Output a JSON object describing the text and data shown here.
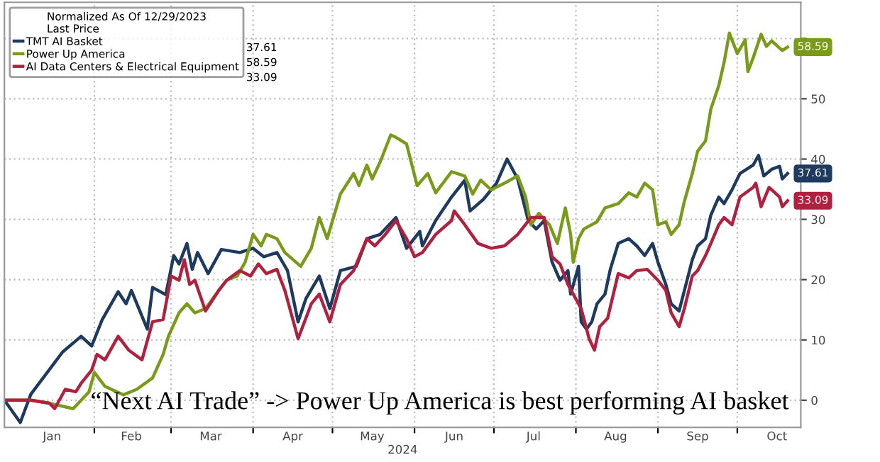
{
  "chart_data": {
    "type": "line",
    "xlabel": "2024",
    "legend_title": "Normalized As Of 12/29/2023\nLast Price",
    "legend": "top left",
    "grid": true,
    "line_style": "solid",
    "marker": "none",
    "xlim": [
      "2023-12-29",
      "2024-10-25"
    ],
    "xticks": [
      {
        "value": "2024-02-01",
        "label": null
      },
      {
        "value": "2024-03-01",
        "label": null
      },
      {
        "value": "2024-04-01",
        "label": null
      },
      {
        "value": "2024-05-01",
        "label": null
      },
      {
        "value": "2024-06-01",
        "label": null
      },
      {
        "value": "2024-07-01",
        "label": null
      },
      {
        "value": "2024-08-01",
        "label": null
      },
      {
        "value": "2024-09-01",
        "label": null
      },
      {
        "value": "2024-10-01",
        "label": null
      },
      {
        "value": "2024-01-16",
        "label": "Jan"
      },
      {
        "value": "2024-02-15",
        "label": "Feb"
      },
      {
        "value": "2024-03-16",
        "label": "Mar"
      },
      {
        "value": "2024-04-16",
        "label": "Apr"
      },
      {
        "value": "2024-05-16",
        "label": "May"
      },
      {
        "value": "2024-06-16",
        "label": "Jun"
      },
      {
        "value": "2024-07-16",
        "label": "Jul"
      },
      {
        "value": "2024-08-16",
        "label": "Aug"
      },
      {
        "value": "2024-09-16",
        "label": "Sep"
      },
      {
        "value": "2024-10-16",
        "label": "Oct"
      }
    ],
    "ylim": [
      -4.5,
      66
    ],
    "yticks": [
      0,
      10,
      20,
      30,
      40,
      50,
      {
        "value": 60,
        "label": null
      }
    ],
    "annotations": [
      "“Next AI Trade” -> Power Up America is best performing AI basket"
    ],
    "series": [
      {
        "name": "TMT AI Basket",
        "color": "#1f3a5f",
        "x": [
          "2023-12-29",
          "2024-01-04",
          "2024-01-08",
          "2024-01-20",
          "2024-01-27",
          "2024-01-31",
          "2024-02-04",
          "2024-02-10",
          "2024-02-13",
          "2024-02-15",
          "2024-02-21",
          "2024-02-23",
          "2024-02-28",
          "2024-03-02",
          "2024-03-04",
          "2024-03-07",
          "2024-03-09",
          "2024-03-11",
          "2024-03-15",
          "2024-03-20",
          "2024-03-27",
          "2024-04-01",
          "2024-04-05",
          "2024-04-10",
          "2024-04-14",
          "2024-04-18",
          "2024-04-21",
          "2024-04-26",
          "2024-04-30",
          "2024-05-04",
          "2024-05-10",
          "2024-05-14",
          "2024-05-19",
          "2024-05-25",
          "2024-05-29",
          "2024-06-03",
          "2024-06-04",
          "2024-06-09",
          "2024-06-15",
          "2024-06-20",
          "2024-06-22",
          "2024-06-27",
          "2024-07-02",
          "2024-07-06",
          "2024-07-10",
          "2024-07-14",
          "2024-07-17",
          "2024-07-20",
          "2024-07-23",
          "2024-07-26",
          "2024-07-29",
          "2024-07-30",
          "2024-08-02",
          "2024-08-03",
          "2024-08-05",
          "2024-08-07",
          "2024-08-09",
          "2024-08-12",
          "2024-08-14",
          "2024-08-17",
          "2024-08-21",
          "2024-08-24",
          "2024-08-27",
          "2024-08-30",
          "2024-09-01",
          "2024-09-04",
          "2024-09-06",
          "2024-09-09",
          "2024-09-11",
          "2024-09-14",
          "2024-09-16",
          "2024-09-19",
          "2024-09-21",
          "2024-09-24",
          "2024-09-26",
          "2024-09-29",
          "2024-10-02",
          "2024-10-07",
          "2024-10-09",
          "2024-10-11",
          "2024-10-14",
          "2024-10-17",
          "2024-10-18",
          "2024-10-20"
        ],
        "values": [
          0,
          -3.7,
          1,
          8,
          10.6,
          9,
          13.4,
          18,
          16,
          18.2,
          11.8,
          18.7,
          17.5,
          24,
          22.6,
          26,
          21.7,
          24.5,
          21,
          25,
          24.5,
          25.2,
          23.8,
          24.5,
          21.5,
          13,
          16.9,
          20.6,
          15.2,
          21.5,
          22.2,
          26.8,
          27.5,
          30.3,
          25.2,
          28,
          25.6,
          29.8,
          33.7,
          36.5,
          31.4,
          33.3,
          36,
          40,
          36.7,
          29.8,
          28.4,
          29.8,
          22.9,
          19.9,
          21.5,
          17.6,
          22.2,
          13,
          11.8,
          13,
          16,
          17.6,
          21.7,
          26,
          26.8,
          25.6,
          24,
          26,
          22.9,
          19.2,
          16,
          14.8,
          18.2,
          23.3,
          25.6,
          26.8,
          30.7,
          33.7,
          32.6,
          34.9,
          37.6,
          39,
          40.6,
          37.2,
          38.3,
          38.8,
          36.7,
          37.61
        ],
        "value_labels": [
          null,
          null,
          null,
          null,
          null,
          null,
          null,
          null,
          null,
          null,
          null,
          null,
          null,
          null,
          null,
          null,
          null,
          null,
          null,
          null,
          null,
          null,
          null,
          null,
          null,
          null,
          null,
          null,
          null,
          null,
          null,
          null,
          null,
          null,
          null,
          null,
          null,
          null,
          null,
          null,
          null,
          null,
          null,
          null,
          null,
          null,
          null,
          null,
          null,
          null,
          null,
          null,
          null,
          null,
          null,
          null,
          null,
          null,
          null,
          null,
          null,
          null,
          null,
          null,
          null,
          null,
          null,
          null,
          null,
          null,
          null,
          null,
          null,
          null,
          null,
          null,
          null,
          null,
          null,
          null,
          null,
          null,
          null,
          "37.61"
        ]
      },
      {
        "name": "Power Up America",
        "color": "#7a9a1a",
        "x": [
          "2023-12-29",
          "2024-01-08",
          "2024-01-15",
          "2024-01-24",
          "2024-01-30",
          "2024-02-01",
          "2024-02-05",
          "2024-02-12",
          "2024-02-17",
          "2024-02-23",
          "2024-02-27",
          "2024-02-29",
          "2024-03-04",
          "2024-03-07",
          "2024-03-10",
          "2024-03-14",
          "2024-03-19",
          "2024-03-22",
          "2024-03-26",
          "2024-03-29",
          "2024-04-01",
          "2024-04-04",
          "2024-04-06",
          "2024-04-10",
          "2024-04-13",
          "2024-04-19",
          "2024-04-23",
          "2024-04-26",
          "2024-04-29",
          "2024-05-04",
          "2024-05-09",
          "2024-05-11",
          "2024-05-14",
          "2024-05-16",
          "2024-05-19",
          "2024-05-23",
          "2024-05-25",
          "2024-05-29",
          "2024-06-02",
          "2024-06-06",
          "2024-06-09",
          "2024-06-15",
          "2024-06-20",
          "2024-06-23",
          "2024-06-26",
          "2024-06-30",
          "2024-07-05",
          "2024-07-10",
          "2024-07-13",
          "2024-07-15",
          "2024-07-18",
          "2024-07-22",
          "2024-07-25",
          "2024-07-28",
          "2024-07-30",
          "2024-07-31",
          "2024-08-02",
          "2024-08-04",
          "2024-08-09",
          "2024-08-12",
          "2024-08-17",
          "2024-08-21",
          "2024-08-24",
          "2024-08-27",
          "2024-08-30",
          "2024-09-01",
          "2024-09-04",
          "2024-09-06",
          "2024-09-09",
          "2024-09-11",
          "2024-09-14",
          "2024-09-16",
          "2024-09-19",
          "2024-09-21",
          "2024-09-24",
          "2024-09-26",
          "2024-09-28",
          "2024-10-01",
          "2024-10-04",
          "2024-10-05",
          "2024-10-07",
          "2024-10-10",
          "2024-10-12",
          "2024-10-14",
          "2024-10-17",
          "2024-10-18",
          "2024-10-20"
        ],
        "values": [
          0,
          0,
          -0.5,
          -1.4,
          1.4,
          4.6,
          2.3,
          0.9,
          1.8,
          3.7,
          7.6,
          10.6,
          14.5,
          16,
          14.5,
          15.2,
          18.2,
          19.9,
          20.6,
          22.9,
          27.5,
          25.6,
          27.5,
          26.8,
          24.5,
          22.2,
          25.2,
          30.3,
          26.8,
          34.2,
          37.6,
          35.6,
          39,
          36.7,
          39.5,
          44,
          43.6,
          42.5,
          35.6,
          37.6,
          34.4,
          37.9,
          37.2,
          34.2,
          36.5,
          34.9,
          36,
          37.2,
          33.7,
          29.1,
          31,
          29.1,
          26,
          31.9,
          27.5,
          22.9,
          26.8,
          28.4,
          29.6,
          31.9,
          32.6,
          34.4,
          33.7,
          36,
          34.9,
          29.1,
          29.6,
          27.5,
          29.1,
          33,
          37.6,
          41.3,
          43,
          48.3,
          52.2,
          56,
          60.9,
          57.5,
          59.8,
          54.5,
          56.8,
          60.7,
          58.7,
          59.6,
          58.4,
          58,
          58.59
        ],
        "value_labels": [
          null,
          null,
          null,
          null,
          null,
          null,
          null,
          null,
          null,
          null,
          null,
          null,
          null,
          null,
          null,
          null,
          null,
          null,
          null,
          null,
          null,
          null,
          null,
          null,
          null,
          null,
          null,
          null,
          null,
          null,
          null,
          null,
          null,
          null,
          null,
          null,
          null,
          null,
          null,
          null,
          null,
          null,
          null,
          null,
          null,
          null,
          null,
          null,
          null,
          null,
          null,
          null,
          null,
          null,
          null,
          null,
          null,
          null,
          null,
          null,
          null,
          null,
          null,
          null,
          null,
          null,
          null,
          null,
          null,
          null,
          null,
          null,
          null,
          null,
          null,
          null,
          null,
          null,
          null,
          null,
          null,
          null,
          null,
          null,
          null,
          null,
          "58.59"
        ]
      },
      {
        "name": "AI Data Centers & Electrical Equipment",
        "color": "#b0203f",
        "x": [
          "2023-12-29",
          "2024-01-08",
          "2024-01-15",
          "2024-01-17",
          "2024-01-21",
          "2024-01-25",
          "2024-01-27",
          "2024-01-31",
          "2024-02-02",
          "2024-02-05",
          "2024-02-10",
          "2024-02-14",
          "2024-02-19",
          "2024-02-23",
          "2024-02-27",
          "2024-03-01",
          "2024-03-04",
          "2024-03-06",
          "2024-03-08",
          "2024-03-10",
          "2024-03-14",
          "2024-03-19",
          "2024-03-22",
          "2024-03-27",
          "2024-03-31",
          "2024-04-03",
          "2024-04-06",
          "2024-04-10",
          "2024-04-13",
          "2024-04-18",
          "2024-04-23",
          "2024-04-26",
          "2024-04-30",
          "2024-05-04",
          "2024-05-09",
          "2024-05-14",
          "2024-05-17",
          "2024-05-21",
          "2024-05-25",
          "2024-05-29",
          "2024-06-01",
          "2024-06-04",
          "2024-06-09",
          "2024-06-15",
          "2024-06-16",
          "2024-06-20",
          "2024-06-25",
          "2024-06-30",
          "2024-07-05",
          "2024-07-10",
          "2024-07-15",
          "2024-07-20",
          "2024-07-23",
          "2024-07-26",
          "2024-07-29",
          "2024-07-31",
          "2024-08-03",
          "2024-08-06",
          "2024-08-08",
          "2024-08-10",
          "2024-08-13",
          "2024-08-17",
          "2024-08-21",
          "2024-08-24",
          "2024-08-28",
          "2024-09-01",
          "2024-09-04",
          "2024-09-06",
          "2024-09-09",
          "2024-09-11",
          "2024-09-14",
          "2024-09-16",
          "2024-09-19",
          "2024-09-21",
          "2024-09-24",
          "2024-09-26",
          "2024-09-29",
          "2024-10-02",
          "2024-10-07",
          "2024-10-08",
          "2024-10-10",
          "2024-10-13",
          "2024-10-17",
          "2024-10-18",
          "2024-10-20"
        ],
        "values": [
          0,
          0,
          -0.5,
          -1.4,
          1.8,
          1.4,
          2.8,
          5,
          7.6,
          6.7,
          10.6,
          8.3,
          6.7,
          13,
          13.4,
          20.6,
          19.9,
          23.3,
          19.2,
          19.9,
          14.8,
          18.2,
          19.9,
          21.5,
          20.6,
          22.6,
          21,
          21.7,
          18.2,
          10.2,
          16,
          17.6,
          13,
          19.2,
          21.5,
          26.8,
          25.6,
          27.5,
          29.8,
          26.8,
          23.8,
          24.5,
          27.5,
          29.8,
          31.4,
          29.1,
          26,
          25.2,
          25.6,
          27.5,
          30.3,
          30.3,
          23.8,
          22.6,
          19.2,
          17.6,
          15.2,
          10.2,
          8.3,
          12.2,
          13.6,
          21,
          20.3,
          21.5,
          21.7,
          19.9,
          18.2,
          14.5,
          12.2,
          15.2,
          20.6,
          21.5,
          24,
          26,
          29.1,
          30.3,
          29.1,
          33.7,
          35.3,
          36,
          32.1,
          35.3,
          33.7,
          32.1,
          33.09
        ],
        "value_labels": [
          null,
          null,
          null,
          null,
          null,
          null,
          null,
          null,
          null,
          null,
          null,
          null,
          null,
          null,
          null,
          null,
          null,
          null,
          null,
          null,
          null,
          null,
          null,
          null,
          null,
          null,
          null,
          null,
          null,
          null,
          null,
          null,
          null,
          null,
          null,
          null,
          null,
          null,
          null,
          null,
          null,
          null,
          null,
          null,
          null,
          null,
          null,
          null,
          null,
          null,
          null,
          null,
          null,
          null,
          null,
          null,
          null,
          null,
          null,
          null,
          null,
          null,
          null,
          null,
          null,
          null,
          null,
          null,
          null,
          null,
          null,
          null,
          null,
          null,
          null,
          null,
          null,
          null,
          null,
          null,
          null,
          null,
          null,
          null,
          "33.09"
        ]
      }
    ]
  }
}
